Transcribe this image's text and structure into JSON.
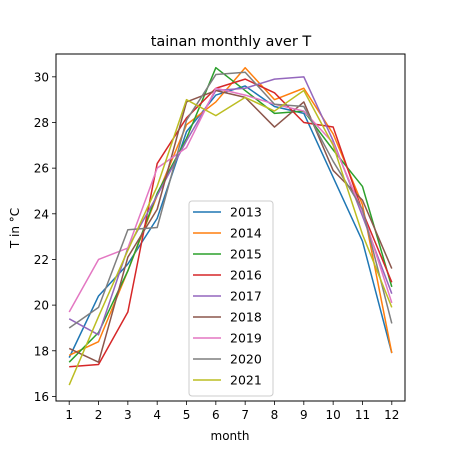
{
  "chart_data": {
    "type": "line",
    "title": "tainan monthly aver T",
    "xlabel": "month",
    "ylabel": "T in °C",
    "x": [
      1,
      2,
      3,
      4,
      5,
      6,
      7,
      8,
      9,
      10,
      11,
      12
    ],
    "xlim": [
      0.55,
      12.45
    ],
    "ylim": [
      15.8,
      31.0
    ],
    "xticks": [
      1,
      2,
      3,
      4,
      5,
      6,
      7,
      8,
      9,
      10,
      11,
      12
    ],
    "yticks": [
      16,
      18,
      20,
      22,
      24,
      26,
      28,
      30
    ],
    "grid": false,
    "legend_position": "lower-center",
    "series": [
      {
        "name": "2013",
        "color": "#1f77b4",
        "values": [
          17.7,
          20.4,
          21.8,
          23.8,
          27.6,
          29.2,
          29.6,
          28.7,
          28.4,
          25.6,
          22.8,
          17.9
        ]
      },
      {
        "name": "2014",
        "color": "#ff7f0e",
        "values": [
          17.8,
          18.4,
          21.5,
          24.8,
          27.9,
          28.9,
          30.4,
          29.0,
          29.5,
          27.5,
          24.4,
          17.9
        ]
      },
      {
        "name": "2015",
        "color": "#2ca02c",
        "values": [
          17.5,
          18.8,
          21.5,
          24.9,
          27.3,
          30.4,
          29.4,
          28.4,
          28.5,
          26.8,
          25.2,
          20.8
        ]
      },
      {
        "name": "2016",
        "color": "#d62728",
        "values": [
          17.3,
          17.4,
          19.7,
          26.2,
          28.2,
          29.5,
          29.9,
          29.3,
          28.0,
          27.8,
          24.1,
          21.0
        ]
      },
      {
        "name": "2017",
        "color": "#9467bd",
        "values": [
          19.4,
          18.7,
          22.5,
          24.8,
          27.2,
          29.4,
          29.5,
          29.9,
          30.0,
          27.2,
          23.9,
          20.5
        ]
      },
      {
        "name": "2018",
        "color": "#8c564b",
        "values": [
          18.1,
          17.5,
          22.1,
          24.2,
          28.9,
          29.4,
          29.1,
          27.8,
          28.9,
          25.9,
          24.6,
          21.6
        ]
      },
      {
        "name": "2019",
        "color": "#e377c2",
        "values": [
          19.7,
          22.0,
          22.5,
          26.0,
          26.9,
          29.5,
          29.2,
          28.8,
          28.5,
          27.1,
          24.1,
          20.1
        ]
      },
      {
        "name": "2020",
        "color": "#7f7f7f",
        "values": [
          19.0,
          19.9,
          23.3,
          23.4,
          28.1,
          30.1,
          30.2,
          28.8,
          28.7,
          26.3,
          24.2,
          19.2
        ]
      },
      {
        "name": "2021",
        "color": "#bcbd22",
        "values": [
          16.5,
          19.5,
          22.4,
          25.2,
          29.0,
          28.3,
          29.1,
          28.5,
          29.4,
          27.0,
          23.1,
          19.9
        ]
      }
    ]
  }
}
